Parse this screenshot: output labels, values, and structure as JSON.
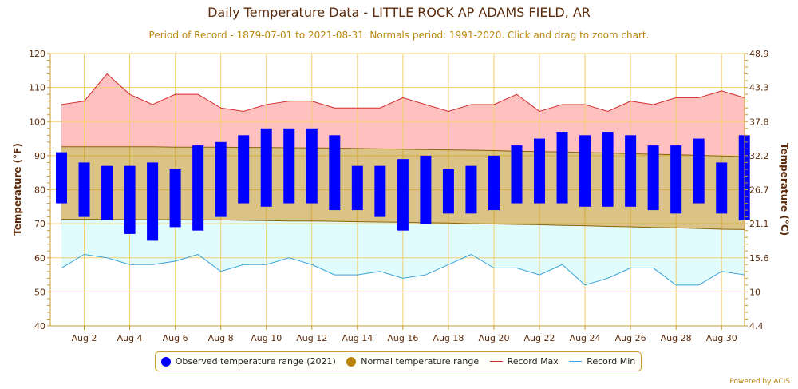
{
  "title": "Daily Temperature Data - LITTLE ROCK AP ADAMS FIELD, AR",
  "subtitle": "Period of Record - 1879-07-01 to 2021-08-31. Normals period: 1991-2020. Click and drag to zoom chart.",
  "credits": "Powered by ACIS",
  "colors": {
    "observed": "#0000ff",
    "normal": "#b8860b",
    "record_max": "#d42a2a",
    "record_min": "#3aa3d9"
  },
  "legend": {
    "observed": "Observed temperature range (2021)",
    "normal": "Normal temperature range",
    "record_max": "Record Max",
    "record_min": "Record Min"
  },
  "chart_data": {
    "type": "bar",
    "xlabel": "",
    "ylabel": "Temperature (°F)",
    "ylabel_right": "Temperature (°C)",
    "ylim": [
      40,
      120
    ],
    "yticks": [
      40,
      50,
      60,
      70,
      80,
      90,
      100,
      110,
      120
    ],
    "yticks_right": [
      "4.4",
      "10",
      "15.6",
      "21.1",
      "26.7",
      "32.2",
      "37.8",
      "43.3",
      "48.9"
    ],
    "x_tick_labels": [
      "Aug 2",
      "Aug 4",
      "Aug 6",
      "Aug 8",
      "Aug 10",
      "Aug 12",
      "Aug 14",
      "Aug 16",
      "Aug 18",
      "Aug 20",
      "Aug 22",
      "Aug 24",
      "Aug 26",
      "Aug 28",
      "Aug 30"
    ],
    "days": [
      1,
      2,
      3,
      4,
      5,
      6,
      7,
      8,
      9,
      10,
      11,
      12,
      13,
      14,
      15,
      16,
      17,
      18,
      19,
      20,
      21,
      22,
      23,
      24,
      25,
      26,
      27,
      28,
      29,
      30,
      31
    ],
    "observed_high": [
      91,
      88,
      87,
      87,
      88,
      86,
      93,
      94,
      96,
      98,
      98,
      98,
      96,
      87,
      87,
      89,
      90,
      86,
      87,
      90,
      93,
      95,
      97,
      96,
      97,
      96,
      93,
      93,
      95,
      88,
      96
    ],
    "observed_low": [
      76,
      72,
      71,
      67,
      65,
      69,
      68,
      72,
      76,
      75,
      76,
      76,
      74,
      74,
      72,
      68,
      70,
      73,
      73,
      74,
      76,
      76,
      76,
      75,
      75,
      75,
      74,
      73,
      76,
      73,
      71
    ],
    "normal_high": [
      92.6,
      92.6,
      92.6,
      92.6,
      92.6,
      92.5,
      92.5,
      92.5,
      92.4,
      92.4,
      92.3,
      92.3,
      92.2,
      92.1,
      92.0,
      91.9,
      91.8,
      91.7,
      91.6,
      91.5,
      91.3,
      91.2,
      91.1,
      90.9,
      90.8,
      90.6,
      90.4,
      90.3,
      90.1,
      89.9,
      89.7
    ],
    "normal_low": [
      71.3,
      71.3,
      71.3,
      71.2,
      71.2,
      71.2,
      71.1,
      71.1,
      71.0,
      70.9,
      70.8,
      70.8,
      70.7,
      70.6,
      70.5,
      70.4,
      70.3,
      70.2,
      70.0,
      69.9,
      69.8,
      69.7,
      69.5,
      69.4,
      69.2,
      69.1,
      68.9,
      68.8,
      68.6,
      68.4,
      68.3
    ],
    "record_max": [
      105,
      106,
      114,
      108,
      105,
      108,
      108,
      104,
      103,
      105,
      106,
      106,
      104,
      104,
      104,
      107,
      105,
      103,
      105,
      105,
      108,
      103,
      105,
      105,
      103,
      106,
      105,
      107,
      107,
      109,
      107
    ],
    "record_min": [
      57,
      61,
      60,
      58,
      58,
      59,
      61,
      56,
      58,
      58,
      60,
      58,
      55,
      55,
      56,
      54,
      55,
      58,
      61,
      57,
      57,
      55,
      58,
      52,
      54,
      57,
      57,
      52,
      52,
      56,
      55
    ],
    "grid": true,
    "legend_position": "bottom"
  }
}
